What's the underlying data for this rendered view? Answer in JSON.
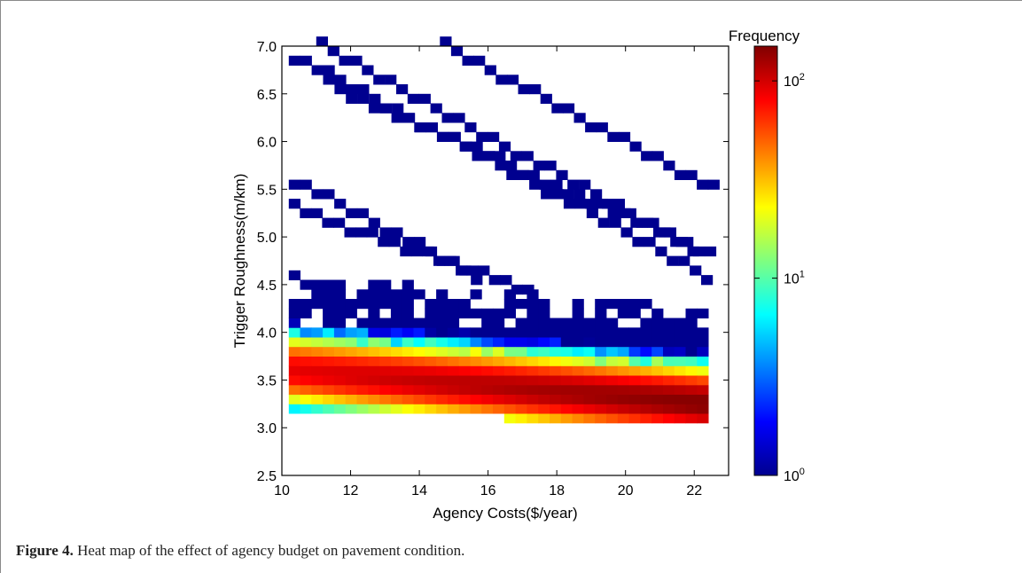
{
  "caption": {
    "label": "Figure 4.",
    "text": "Heat map of the effect of agency budget on pavement condition."
  },
  "chart_data": {
    "type": "heatmap",
    "xlabel": "Agency Costs($/year)",
    "ylabel": "Trigger Roughness(m/km)",
    "xlim": [
      10,
      23
    ],
    "ylim": [
      2.5,
      7.0
    ],
    "x_ticks": [
      "10",
      "12",
      "14",
      "16",
      "18",
      "20",
      "22"
    ],
    "y_ticks": [
      "2.5",
      "3.0",
      "3.5",
      "4.0",
      "4.5",
      "5.0",
      "5.5",
      "6.0",
      "6.5",
      "7.0"
    ],
    "colorbar": {
      "label": "Frequency",
      "scale": "log",
      "range": [
        1,
        150
      ],
      "tick_values": [
        1,
        10,
        100
      ],
      "ticks": [
        "10",
        "10",
        "10"
      ],
      "tick_exponents": [
        "0",
        "1",
        "2"
      ],
      "colormap": "jet"
    },
    "bins": {
      "x_start": 10.2,
      "x_end": 22.4,
      "x_step": 0.33,
      "y_start": 2.95,
      "y_end": 4.6,
      "y_step": 0.1
    },
    "dense_band_peak": {
      "peak_y_start": 3.55,
      "peak_y_end": 3.2,
      "peak_value_start": 90,
      "peak_value_end": 150
    },
    "diagonal_bands": [
      {
        "x_start": 10.2,
        "y_start": 6.85,
        "x_end": 22.2,
        "y_end": 4.55,
        "value": 1
      },
      {
        "x_start": 11.0,
        "y_start": 6.95,
        "x_end": 22.3,
        "y_end": 4.75,
        "value": 1
      },
      {
        "x_start": 11.2,
        "y_start": 6.55,
        "x_end": 21.8,
        "y_end": 4.85,
        "value": 1
      },
      {
        "x_start": 14.6,
        "y_start": 6.95,
        "x_end": 22.4,
        "y_end": 5.45,
        "value": 1
      },
      {
        "x_start": 10.2,
        "y_start": 5.55,
        "x_end": 15.5,
        "y_end": 4.55,
        "value": 1
      },
      {
        "x_start": 10.2,
        "y_start": 5.25,
        "x_end": 17.0,
        "y_end": 4.4,
        "value": 1
      }
    ]
  }
}
